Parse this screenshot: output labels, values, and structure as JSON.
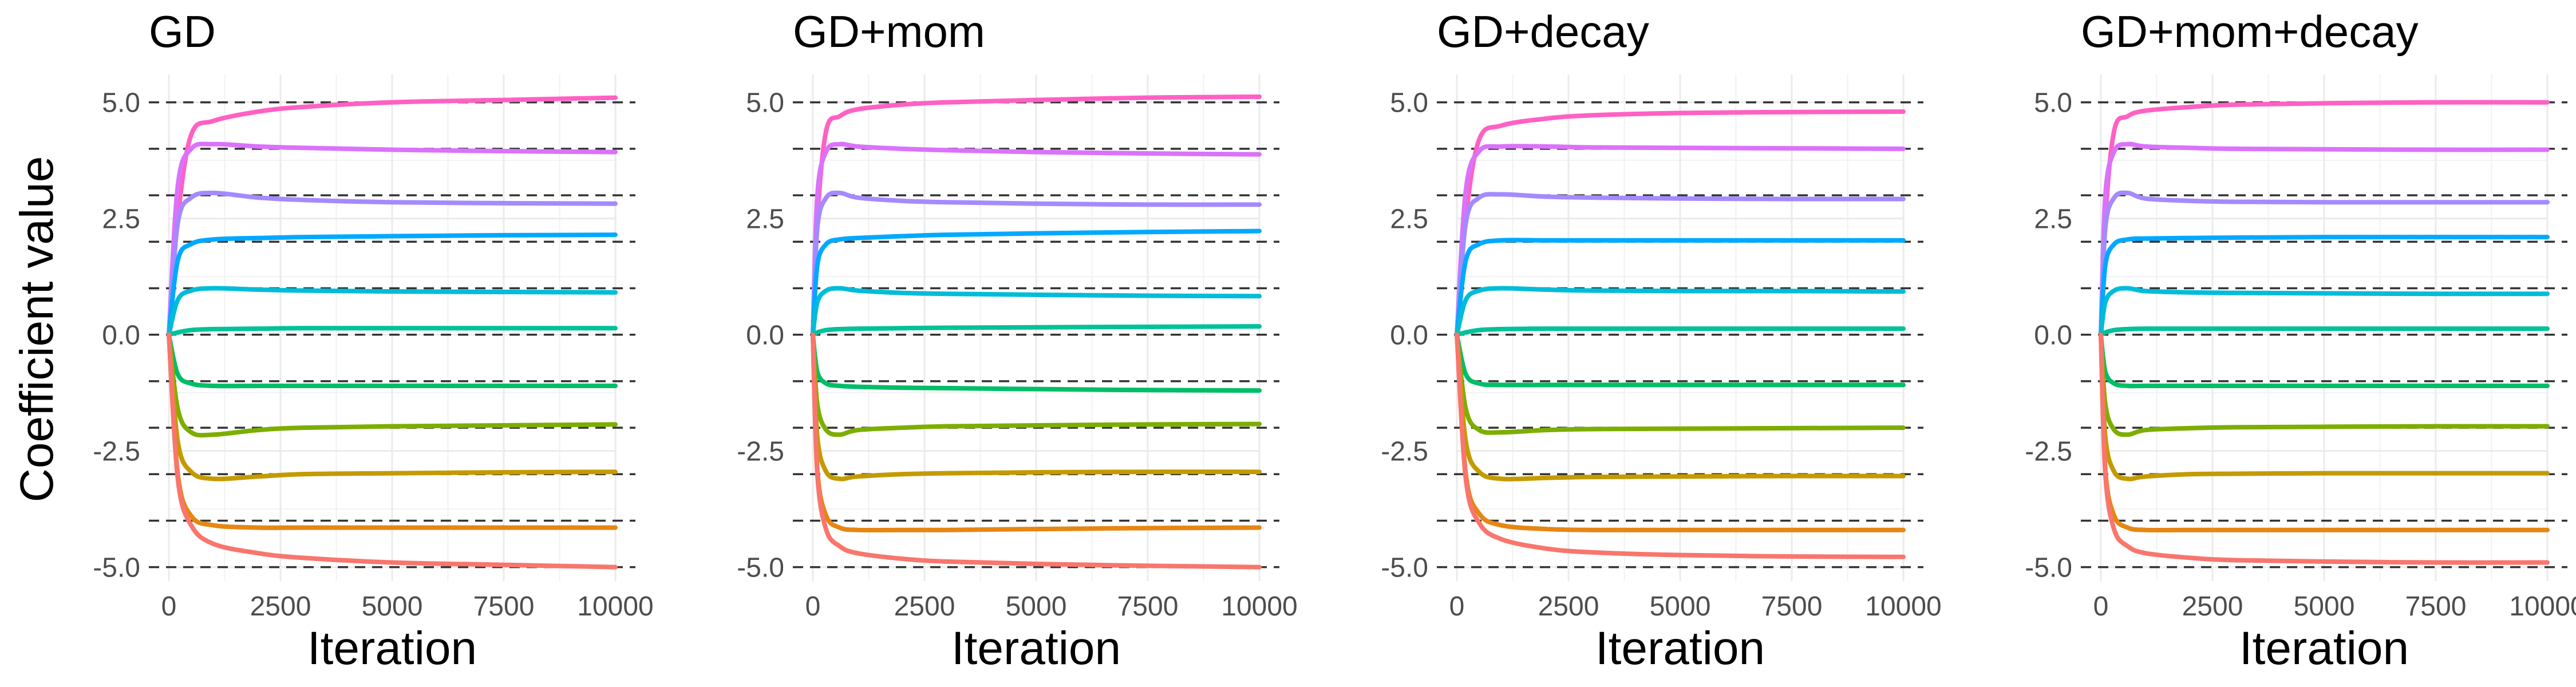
{
  "figure": {
    "ylabel": "Coefficient value",
    "xlabel": "Iteration"
  },
  "chart_data": [
    {
      "type": "line",
      "title": "GD",
      "xlabel": "Iteration",
      "ylabel": "Coefficient value",
      "xlim": [
        0,
        10000
      ],
      "ylim": [
        -5.3,
        5.6
      ],
      "x_ticks": [
        0,
        2500,
        5000,
        7500,
        10000
      ],
      "y_ticks": [
        -5.0,
        -2.5,
        0.0,
        2.5,
        5.0
      ],
      "y_tick_labels": [
        "-5.0",
        "-2.5",
        "0.0",
        "2.5",
        "5.0"
      ],
      "reference_lines": [
        -5,
        -4,
        -3,
        -2,
        -1,
        0,
        1,
        2,
        3,
        4,
        5
      ],
      "grid": true,
      "legend": "none",
      "x": [
        0,
        200,
        500,
        1000,
        2000,
        3000,
        5000,
        7500,
        10000
      ],
      "series": [
        {
          "color": "#FF61C3",
          "values": [
            0,
            2.5,
            4.3,
            4.6,
            4.8,
            4.9,
            5.0,
            5.05,
            5.1
          ]
        },
        {
          "color": "#DB72FB",
          "values": [
            0,
            3.2,
            4.0,
            4.1,
            4.05,
            4.02,
            3.98,
            3.95,
            3.93
          ]
        },
        {
          "color": "#A58AFF",
          "values": [
            0,
            2.4,
            2.95,
            3.05,
            2.95,
            2.9,
            2.85,
            2.83,
            2.82
          ]
        },
        {
          "color": "#00A9FF",
          "values": [
            0,
            1.6,
            1.95,
            2.05,
            2.08,
            2.1,
            2.12,
            2.14,
            2.15
          ]
        },
        {
          "color": "#00BCD8",
          "values": [
            0,
            0.75,
            0.95,
            1.0,
            0.97,
            0.95,
            0.93,
            0.92,
            0.91
          ]
        },
        {
          "color": "#00C19A",
          "values": [
            0,
            0.05,
            0.1,
            0.12,
            0.13,
            0.14,
            0.14,
            0.14,
            0.14
          ]
        },
        {
          "color": "#00BE67",
          "values": [
            0,
            -0.85,
            -1.05,
            -1.1,
            -1.1,
            -1.1,
            -1.1,
            -1.1,
            -1.1
          ]
        },
        {
          "color": "#7CAE00",
          "values": [
            0,
            -1.6,
            -2.1,
            -2.15,
            -2.05,
            -2.0,
            -1.97,
            -1.95,
            -1.93
          ]
        },
        {
          "color": "#C49A00",
          "values": [
            0,
            -2.3,
            -2.95,
            -3.1,
            -3.05,
            -3.0,
            -2.98,
            -2.96,
            -2.95
          ]
        },
        {
          "color": "#E68613",
          "values": [
            0,
            -3.0,
            -3.9,
            -4.1,
            -4.15,
            -4.15,
            -4.15,
            -4.15,
            -4.15
          ]
        },
        {
          "color": "#F8766D",
          "values": [
            0,
            -3.1,
            -4.1,
            -4.5,
            -4.7,
            -4.8,
            -4.9,
            -4.95,
            -5.0
          ]
        }
      ]
    },
    {
      "type": "line",
      "title": "GD+mom",
      "xlabel": "Iteration",
      "ylabel": "",
      "xlim": [
        0,
        10000
      ],
      "ylim": [
        -5.3,
        5.6
      ],
      "x_ticks": [
        0,
        2500,
        5000,
        7500,
        10000
      ],
      "y_ticks": [
        -5.0,
        -2.5,
        0.0,
        2.5,
        5.0
      ],
      "y_tick_labels": [
        "-5.0",
        "-2.5",
        "0.0",
        "2.5",
        "5.0"
      ],
      "reference_lines": [
        -5,
        -4,
        -3,
        -2,
        -1,
        0,
        1,
        2,
        3,
        4,
        5
      ],
      "grid": true,
      "legend": "none",
      "x": [
        0,
        100,
        300,
        600,
        1000,
        2000,
        3000,
        5000,
        7500,
        10000
      ],
      "series": [
        {
          "color": "#FF61C3",
          "values": [
            0,
            2.5,
            4.4,
            4.7,
            4.85,
            4.95,
            5.0,
            5.05,
            5.1,
            5.12
          ]
        },
        {
          "color": "#DB72FB",
          "values": [
            0,
            3.0,
            3.95,
            4.1,
            4.05,
            4.0,
            3.97,
            3.93,
            3.9,
            3.88
          ]
        },
        {
          "color": "#A58AFF",
          "values": [
            0,
            2.3,
            2.95,
            3.05,
            2.95,
            2.88,
            2.85,
            2.82,
            2.8,
            2.8
          ]
        },
        {
          "color": "#00A9FF",
          "values": [
            0,
            1.5,
            1.95,
            2.05,
            2.08,
            2.12,
            2.15,
            2.18,
            2.21,
            2.23
          ]
        },
        {
          "color": "#00BCD8",
          "values": [
            0,
            0.7,
            0.95,
            1.0,
            0.95,
            0.9,
            0.88,
            0.86,
            0.84,
            0.83
          ]
        },
        {
          "color": "#00C19A",
          "values": [
            0,
            0.05,
            0.1,
            0.12,
            0.13,
            0.14,
            0.15,
            0.16,
            0.17,
            0.18
          ]
        },
        {
          "color": "#00BE67",
          "values": [
            0,
            -0.8,
            -1.05,
            -1.1,
            -1.12,
            -1.14,
            -1.15,
            -1.17,
            -1.19,
            -1.2
          ]
        },
        {
          "color": "#7CAE00",
          "values": [
            0,
            -1.5,
            -2.05,
            -2.15,
            -2.05,
            -2.0,
            -1.97,
            -1.95,
            -1.93,
            -1.92
          ]
        },
        {
          "color": "#C49A00",
          "values": [
            0,
            -2.2,
            -2.95,
            -3.1,
            -3.05,
            -3.0,
            -2.98,
            -2.96,
            -2.95,
            -2.95
          ]
        },
        {
          "color": "#E68613",
          "values": [
            0,
            -2.9,
            -3.9,
            -4.15,
            -4.2,
            -4.2,
            -4.2,
            -4.18,
            -4.16,
            -4.15
          ]
        },
        {
          "color": "#F8766D",
          "values": [
            0,
            -3.0,
            -4.2,
            -4.55,
            -4.7,
            -4.82,
            -4.88,
            -4.93,
            -4.97,
            -5.0
          ]
        }
      ]
    },
    {
      "type": "line",
      "title": "GD+decay",
      "xlabel": "Iteration",
      "ylabel": "",
      "xlim": [
        0,
        10000
      ],
      "ylim": [
        -5.3,
        5.6
      ],
      "x_ticks": [
        0,
        2500,
        5000,
        7500,
        10000
      ],
      "y_ticks": [
        -5.0,
        -2.5,
        0.0,
        2.5,
        5.0
      ],
      "y_tick_labels": [
        "-5.0",
        "-2.5",
        "0.0",
        "2.5",
        "5.0"
      ],
      "reference_lines": [
        -5,
        -4,
        -3,
        -2,
        -1,
        0,
        1,
        2,
        3,
        4,
        5
      ],
      "grid": true,
      "legend": "none",
      "x": [
        0,
        200,
        500,
        1000,
        2000,
        3000,
        5000,
        7500,
        10000
      ],
      "series": [
        {
          "color": "#FF61C3",
          "values": [
            0,
            2.5,
            4.2,
            4.5,
            4.65,
            4.72,
            4.77,
            4.79,
            4.8
          ]
        },
        {
          "color": "#DB72FB",
          "values": [
            0,
            3.1,
            3.95,
            4.05,
            4.05,
            4.03,
            4.02,
            4.01,
            4.0
          ]
        },
        {
          "color": "#A58AFF",
          "values": [
            0,
            2.4,
            2.95,
            3.02,
            2.97,
            2.95,
            2.93,
            2.92,
            2.92
          ]
        },
        {
          "color": "#00A9FF",
          "values": [
            0,
            1.6,
            1.95,
            2.03,
            2.03,
            2.03,
            2.03,
            2.03,
            2.03
          ]
        },
        {
          "color": "#00BCD8",
          "values": [
            0,
            0.75,
            0.95,
            1.0,
            0.97,
            0.95,
            0.94,
            0.94,
            0.93
          ]
        },
        {
          "color": "#00C19A",
          "values": [
            0,
            0.05,
            0.1,
            0.12,
            0.13,
            0.13,
            0.13,
            0.13,
            0.13
          ]
        },
        {
          "color": "#00BE67",
          "values": [
            0,
            -0.85,
            -1.05,
            -1.08,
            -1.08,
            -1.08,
            -1.08,
            -1.08,
            -1.08
          ]
        },
        {
          "color": "#7CAE00",
          "values": [
            0,
            -1.6,
            -2.05,
            -2.1,
            -2.05,
            -2.03,
            -2.02,
            -2.01,
            -2.0
          ]
        },
        {
          "color": "#C49A00",
          "values": [
            0,
            -2.3,
            -2.95,
            -3.1,
            -3.08,
            -3.06,
            -3.05,
            -3.04,
            -3.04
          ]
        },
        {
          "color": "#E68613",
          "values": [
            0,
            -3.0,
            -3.85,
            -4.1,
            -4.18,
            -4.2,
            -4.2,
            -4.2,
            -4.2
          ]
        },
        {
          "color": "#F8766D",
          "values": [
            0,
            -3.1,
            -4.05,
            -4.4,
            -4.6,
            -4.68,
            -4.74,
            -4.77,
            -4.78
          ]
        }
      ]
    },
    {
      "type": "line",
      "title": "GD+mom+decay",
      "xlabel": "Iteration",
      "ylabel": "",
      "xlim": [
        0,
        10000
      ],
      "ylim": [
        -5.3,
        5.6
      ],
      "x_ticks": [
        0,
        2500,
        5000,
        7500,
        10000
      ],
      "y_ticks": [
        -5.0,
        -2.5,
        0.0,
        2.5,
        5.0
      ],
      "y_tick_labels": [
        "-5.0",
        "-2.5",
        "0.0",
        "2.5",
        "5.0"
      ],
      "reference_lines": [
        -5,
        -4,
        -3,
        -2,
        -1,
        0,
        1,
        2,
        3,
        4,
        5
      ],
      "grid": true,
      "legend": "none",
      "x": [
        0,
        100,
        300,
        600,
        1000,
        2000,
        3000,
        5000,
        7500,
        10000
      ],
      "series": [
        {
          "color": "#FF61C3",
          "values": [
            0,
            2.5,
            4.4,
            4.7,
            4.82,
            4.9,
            4.95,
            4.98,
            5.0,
            5.0
          ]
        },
        {
          "color": "#DB72FB",
          "values": [
            0,
            3.0,
            3.95,
            4.1,
            4.05,
            4.02,
            4.0,
            3.99,
            3.98,
            3.98
          ]
        },
        {
          "color": "#A58AFF",
          "values": [
            0,
            2.3,
            2.95,
            3.05,
            2.93,
            2.88,
            2.86,
            2.85,
            2.85,
            2.85
          ]
        },
        {
          "color": "#00A9FF",
          "values": [
            0,
            1.5,
            1.95,
            2.05,
            2.07,
            2.08,
            2.09,
            2.1,
            2.1,
            2.1
          ]
        },
        {
          "color": "#00BCD8",
          "values": [
            0,
            0.7,
            0.95,
            1.0,
            0.94,
            0.91,
            0.9,
            0.89,
            0.88,
            0.88
          ]
        },
        {
          "color": "#00C19A",
          "values": [
            0,
            0.05,
            0.1,
            0.12,
            0.13,
            0.13,
            0.13,
            0.13,
            0.13,
            0.13
          ]
        },
        {
          "color": "#00BE67",
          "values": [
            0,
            -0.8,
            -1.05,
            -1.1,
            -1.1,
            -1.1,
            -1.1,
            -1.1,
            -1.1,
            -1.1
          ]
        },
        {
          "color": "#7CAE00",
          "values": [
            0,
            -1.5,
            -2.05,
            -2.15,
            -2.05,
            -2.01,
            -1.99,
            -1.98,
            -1.97,
            -1.97
          ]
        },
        {
          "color": "#C49A00",
          "values": [
            0,
            -2.2,
            -2.95,
            -3.1,
            -3.05,
            -3.0,
            -2.99,
            -2.98,
            -2.98,
            -2.98
          ]
        },
        {
          "color": "#E68613",
          "values": [
            0,
            -2.9,
            -3.9,
            -4.15,
            -4.2,
            -4.2,
            -4.2,
            -4.2,
            -4.2,
            -4.2
          ]
        },
        {
          "color": "#F8766D",
          "values": [
            0,
            -3.0,
            -4.2,
            -4.55,
            -4.7,
            -4.8,
            -4.85,
            -4.88,
            -4.9,
            -4.9
          ]
        }
      ]
    }
  ]
}
